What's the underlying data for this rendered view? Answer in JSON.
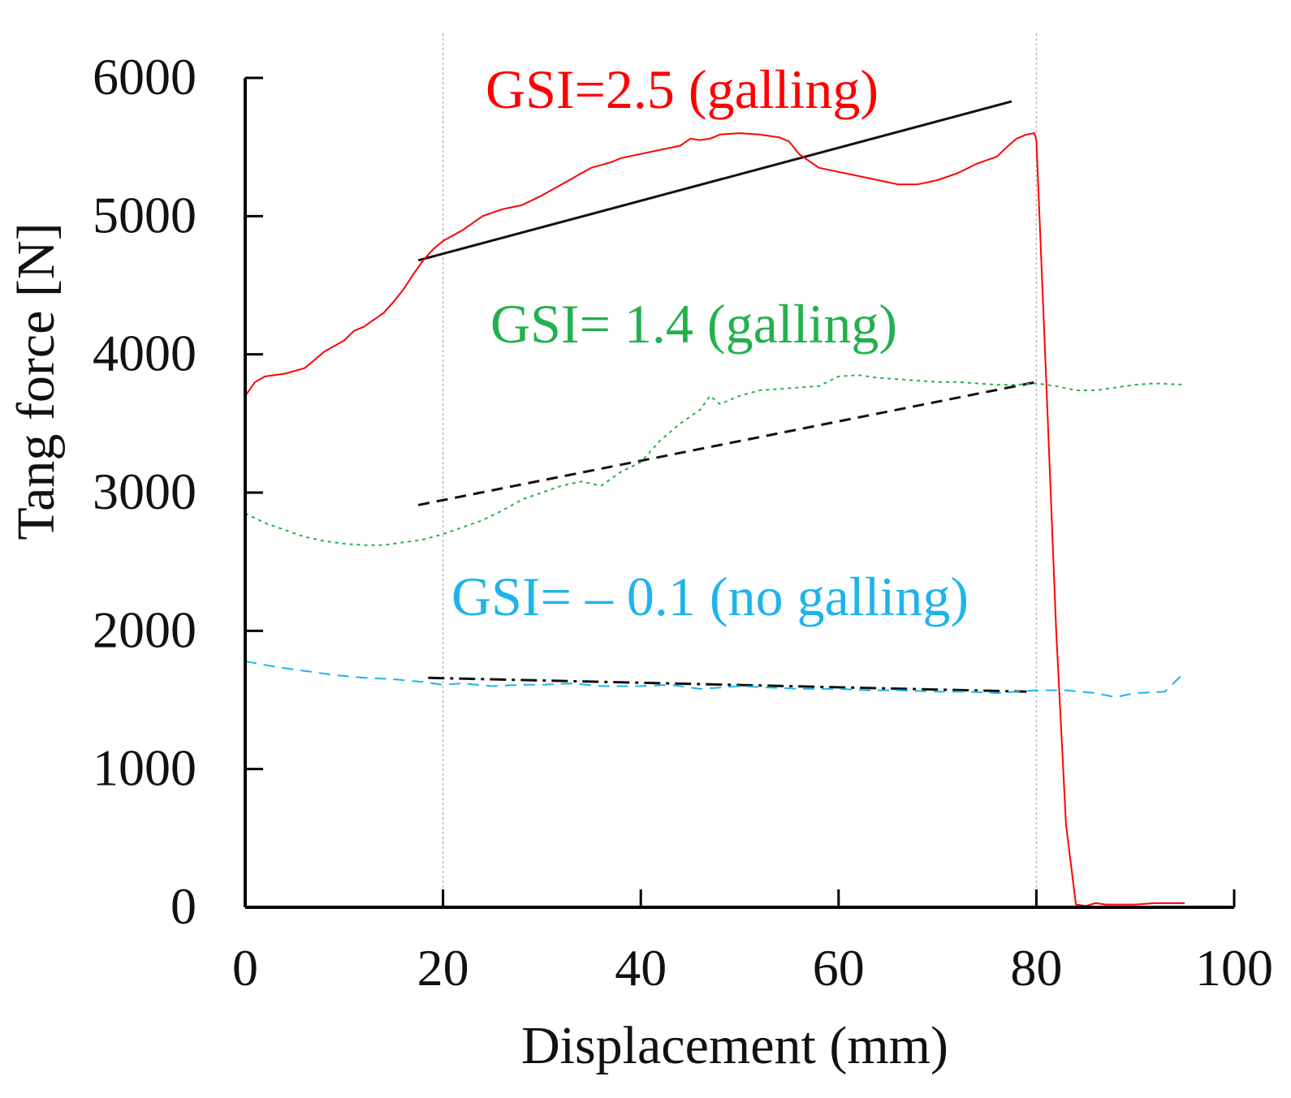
{
  "chart_data": {
    "type": "line",
    "title": "",
    "xlabel": "Displacement (mm)",
    "ylabel": "Tang force [N]",
    "xlim": [
      0,
      100
    ],
    "ylim": [
      0,
      6000
    ],
    "xticks": [
      0,
      20,
      40,
      60,
      80,
      100
    ],
    "yticks": [
      0,
      1000,
      2000,
      3000,
      4000,
      5000,
      6000
    ],
    "xtick_labels": [
      "0",
      "20",
      "40",
      "60",
      "80",
      "100"
    ],
    "ytick_labels": [
      "0",
      "1000",
      "2000",
      "3000",
      "4000",
      "5000",
      "6000"
    ],
    "reference_lines_x": [
      20,
      80
    ],
    "grid": false,
    "series": [
      {
        "name": "GSI=2.5 (galling)",
        "color": "#ff0000",
        "style": "solid",
        "x": [
          0,
          1,
          2,
          4,
          6,
          7,
          8,
          10,
          11,
          12,
          14,
          15,
          16,
          17,
          18,
          19,
          20,
          22,
          24,
          26,
          28,
          30,
          32,
          34,
          35,
          36,
          37,
          38,
          40,
          42,
          44,
          45,
          46,
          47,
          48,
          50,
          52,
          54,
          55,
          56,
          58,
          60,
          62,
          64,
          66,
          68,
          70,
          72,
          74,
          76,
          77,
          78,
          79,
          79.8,
          80,
          81,
          82,
          83,
          84,
          85,
          86,
          87,
          88,
          90,
          92,
          95
        ],
        "values": [
          3700,
          3800,
          3840,
          3860,
          3900,
          3960,
          4020,
          4100,
          4170,
          4200,
          4300,
          4380,
          4470,
          4580,
          4680,
          4760,
          4820,
          4900,
          5000,
          5050,
          5080,
          5150,
          5230,
          5310,
          5350,
          5370,
          5390,
          5420,
          5450,
          5480,
          5510,
          5560,
          5550,
          5560,
          5590,
          5600,
          5590,
          5570,
          5540,
          5450,
          5350,
          5320,
          5290,
          5260,
          5230,
          5230,
          5260,
          5310,
          5380,
          5430,
          5500,
          5560,
          5590,
          5600,
          5550,
          3800,
          2000,
          600,
          20,
          10,
          30,
          20,
          20,
          20,
          30,
          30
        ]
      },
      {
        "name": "GSI= 1.4 (galling)",
        "color": "#22b14c",
        "style": "dotted",
        "x": [
          0,
          2,
          4,
          6,
          8,
          10,
          12,
          14,
          16,
          18,
          20,
          22,
          24,
          26,
          28,
          30,
          32,
          34,
          36,
          38,
          40,
          42,
          44,
          46,
          47,
          48,
          50,
          52,
          54,
          56,
          58,
          60,
          62,
          64,
          66,
          68,
          70,
          72,
          74,
          76,
          78,
          80,
          82,
          84,
          86,
          88,
          90,
          92,
          95
        ],
        "values": [
          2850,
          2780,
          2730,
          2680,
          2650,
          2630,
          2620,
          2620,
          2640,
          2660,
          2700,
          2750,
          2800,
          2870,
          2950,
          3000,
          3050,
          3080,
          3050,
          3150,
          3220,
          3380,
          3500,
          3600,
          3700,
          3640,
          3700,
          3740,
          3750,
          3760,
          3770,
          3840,
          3850,
          3830,
          3820,
          3810,
          3800,
          3800,
          3790,
          3780,
          3780,
          3790,
          3770,
          3740,
          3740,
          3760,
          3780,
          3790,
          3780
        ]
      },
      {
        "name": "GSI= – 0.1 (no galling)",
        "color": "#1eb4ea",
        "style": "dashed",
        "x": [
          0,
          3,
          6,
          9,
          12,
          15,
          18,
          20,
          22,
          25,
          28,
          30,
          33,
          36,
          40,
          43,
          46,
          50,
          53,
          56,
          60,
          63,
          66,
          70,
          73,
          76,
          80,
          83,
          86,
          88,
          90,
          93,
          95
        ],
        "values": [
          1780,
          1740,
          1710,
          1680,
          1660,
          1650,
          1630,
          1610,
          1620,
          1600,
          1610,
          1610,
          1620,
          1600,
          1600,
          1610,
          1580,
          1600,
          1590,
          1580,
          1580,
          1570,
          1570,
          1560,
          1560,
          1550,
          1570,
          1570,
          1550,
          1520,
          1550,
          1560,
          1700
        ]
      }
    ],
    "trend_lines": [
      {
        "name": "trend-galling-2.5",
        "style": "solid",
        "x": [
          17.5,
          77.5
        ],
        "values": [
          4680,
          5830
        ]
      },
      {
        "name": "trend-galling-1.4",
        "style": "dashed",
        "x": [
          17.5,
          80
        ],
        "values": [
          2910,
          3800
        ]
      },
      {
        "name": "trend-no-galling",
        "style": "dashdot",
        "x": [
          18.5,
          79
        ],
        "values": [
          1660,
          1560
        ]
      }
    ],
    "annotations": [
      {
        "text": "GSI=2.5 (galling)",
        "color": "#ff0000"
      },
      {
        "text": "GSI= 1.4 (galling)",
        "color": "#22b14c"
      },
      {
        "text": "GSI= – 0.1 (no galling)",
        "color": "#1eb4ea"
      }
    ]
  }
}
